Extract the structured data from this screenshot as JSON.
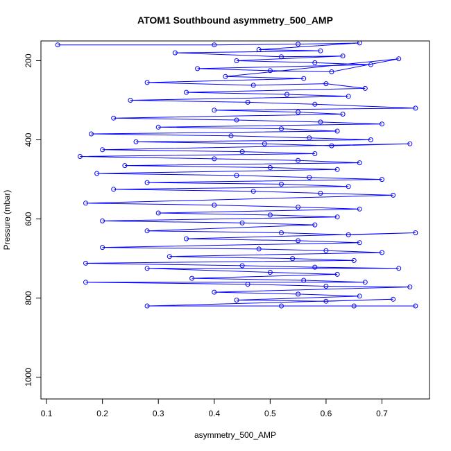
{
  "chart_data": {
    "type": "line",
    "title": "ATOM1 Southbound asymmetry_500_AMP",
    "xlabel": "asymmetry_500_AMP",
    "ylabel": "Pressure (mbar)",
    "xlim": [
      0.09,
      0.785
    ],
    "ylim": [
      1055,
      150
    ],
    "y_reversed": true,
    "grid": false,
    "x_ticks": [
      0.1,
      0.2,
      0.3,
      0.4,
      0.5,
      0.6,
      0.7
    ],
    "y_ticks": [
      200,
      400,
      600,
      800,
      1000
    ],
    "series_color": "#0000ff",
    "marker": "open-circle",
    "series": [
      {
        "points": [
          [
            0.12,
            160
          ],
          [
            0.4,
            160
          ],
          [
            0.55,
            158
          ],
          [
            0.66,
            155
          ],
          [
            0.48,
            172
          ],
          [
            0.59,
            175
          ],
          [
            0.33,
            180
          ],
          [
            0.52,
            190
          ],
          [
            0.63,
            188
          ],
          [
            0.44,
            200
          ],
          [
            0.58,
            205
          ],
          [
            0.68,
            210
          ],
          [
            0.37,
            220
          ],
          [
            0.5,
            225
          ],
          [
            0.61,
            228
          ],
          [
            0.73,
            195
          ],
          [
            0.42,
            240
          ],
          [
            0.56,
            245
          ],
          [
            0.28,
            255
          ],
          [
            0.47,
            262
          ],
          [
            0.6,
            258
          ],
          [
            0.67,
            270
          ],
          [
            0.35,
            280
          ],
          [
            0.53,
            285
          ],
          [
            0.64,
            290
          ],
          [
            0.25,
            300
          ],
          [
            0.46,
            305
          ],
          [
            0.58,
            310
          ],
          [
            0.76,
            320
          ],
          [
            0.4,
            325
          ],
          [
            0.55,
            330
          ],
          [
            0.63,
            335
          ],
          [
            0.22,
            345
          ],
          [
            0.44,
            350
          ],
          [
            0.59,
            355
          ],
          [
            0.7,
            360
          ],
          [
            0.3,
            368
          ],
          [
            0.52,
            372
          ],
          [
            0.62,
            378
          ],
          [
            0.18,
            385
          ],
          [
            0.43,
            390
          ],
          [
            0.57,
            395
          ],
          [
            0.68,
            400
          ],
          [
            0.26,
            405
          ],
          [
            0.49,
            410
          ],
          [
            0.61,
            415
          ],
          [
            0.75,
            410
          ],
          [
            0.2,
            425
          ],
          [
            0.45,
            430
          ],
          [
            0.58,
            435
          ],
          [
            0.16,
            442
          ],
          [
            0.4,
            448
          ],
          [
            0.55,
            452
          ],
          [
            0.66,
            458
          ],
          [
            0.24,
            465
          ],
          [
            0.5,
            470
          ],
          [
            0.62,
            475
          ],
          [
            0.19,
            485
          ],
          [
            0.44,
            490
          ],
          [
            0.57,
            495
          ],
          [
            0.7,
            500
          ],
          [
            0.28,
            508
          ],
          [
            0.52,
            512
          ],
          [
            0.64,
            518
          ],
          [
            0.22,
            525
          ],
          [
            0.47,
            530
          ],
          [
            0.59,
            535
          ],
          [
            0.72,
            540
          ],
          [
            0.17,
            560
          ],
          [
            0.4,
            565
          ],
          [
            0.55,
            570
          ],
          [
            0.66,
            575
          ],
          [
            0.3,
            585
          ],
          [
            0.5,
            590
          ],
          [
            0.62,
            595
          ],
          [
            0.2,
            605
          ],
          [
            0.45,
            610
          ],
          [
            0.58,
            615
          ],
          [
            0.28,
            630
          ],
          [
            0.52,
            635
          ],
          [
            0.64,
            640
          ],
          [
            0.76,
            635
          ],
          [
            0.35,
            650
          ],
          [
            0.55,
            655
          ],
          [
            0.66,
            660
          ],
          [
            0.2,
            672
          ],
          [
            0.48,
            676
          ],
          [
            0.6,
            680
          ],
          [
            0.7,
            685
          ],
          [
            0.32,
            695
          ],
          [
            0.54,
            700
          ],
          [
            0.65,
            705
          ],
          [
            0.17,
            712
          ],
          [
            0.45,
            718
          ],
          [
            0.58,
            722
          ],
          [
            0.73,
            725
          ],
          [
            0.28,
            725
          ],
          [
            0.5,
            735
          ],
          [
            0.62,
            740
          ],
          [
            0.36,
            750
          ],
          [
            0.56,
            755
          ],
          [
            0.67,
            760
          ],
          [
            0.17,
            760
          ],
          [
            0.46,
            765
          ],
          [
            0.6,
            770
          ],
          [
            0.75,
            772
          ],
          [
            0.4,
            785
          ],
          [
            0.55,
            790
          ],
          [
            0.66,
            795
          ],
          [
            0.44,
            805
          ],
          [
            0.6,
            808
          ],
          [
            0.72,
            803
          ],
          [
            0.28,
            820
          ],
          [
            0.52,
            820
          ],
          [
            0.65,
            820
          ],
          [
            0.76,
            820
          ]
        ]
      }
    ]
  }
}
